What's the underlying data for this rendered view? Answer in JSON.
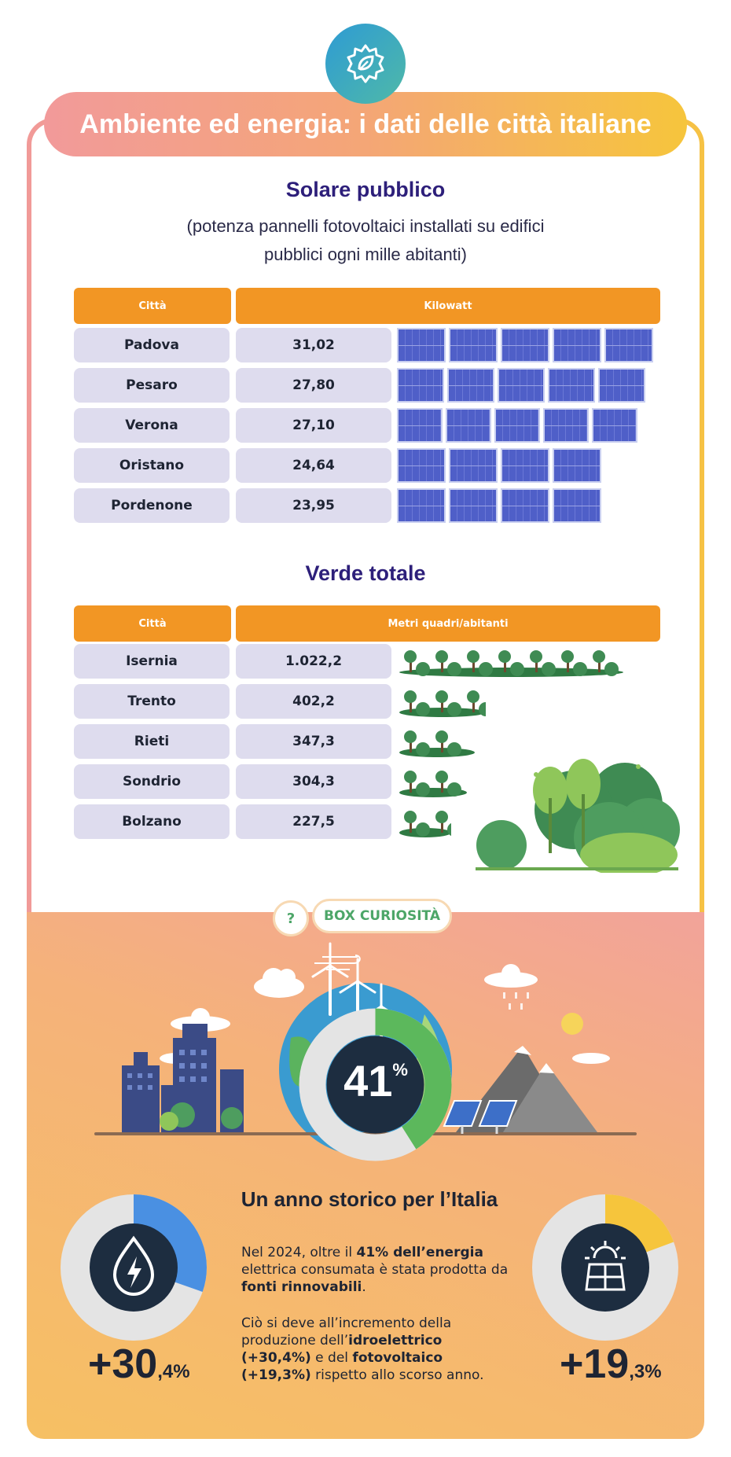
{
  "title": "Ambiente ed energia: i dati delle città italiane",
  "solar": {
    "title": "Solare pubblico",
    "subtitle_line1": "(potenza pannelli fotovoltaici installati su edifici",
    "subtitle_line2": "pubblici ogni mille abitanti)",
    "col_city": "Città",
    "col_value": "Kilowatt",
    "rows": [
      {
        "city": "Padova",
        "value": "31,02",
        "panels": 5
      },
      {
        "city": "Pesaro",
        "value": "27,80",
        "panels": 5
      },
      {
        "city": "Verona",
        "value": "27,10",
        "panels": 5
      },
      {
        "city": "Oristano",
        "value": "24,64",
        "panels": 4
      },
      {
        "city": "Pordenone",
        "value": "23,95",
        "panels": 4
      }
    ]
  },
  "green": {
    "title": "Verde totale",
    "col_city": "Città",
    "col_value": "Metri quadri/abitanti",
    "rows": [
      {
        "city": "Isernia",
        "value": "1.022,2"
      },
      {
        "city": "Trento",
        "value": "402,2"
      },
      {
        "city": "Rieti",
        "value": "347,3"
      },
      {
        "city": "Sondrio",
        "value": "304,3"
      },
      {
        "city": "Bolzano",
        "value": "227,5"
      }
    ]
  },
  "curiosity": {
    "question_mark": "?",
    "tag": "BOX CURIOSITÀ",
    "donut_value": "41",
    "donut_unit": "%",
    "donut_fraction": 0.41,
    "heading": "Un anno storico per l’Italia",
    "p1_a": "Nel 2024, oltre il ",
    "p1_b": "41% dell’energia",
    "p1_c": " elettrica consumata è stata prodotta da ",
    "p1_d": "fonti rinnovabili",
    "p1_e": ".",
    "p2_a": "Ciò si deve all’incremento della produzione dell’",
    "p2_b": "idroelettrico",
    "p2_c": " (+30,4%)",
    "p2_d": " e del ",
    "p2_e": "fotovoltaico",
    "p2_f": " (+19,3%)",
    "p2_g": " rispetto allo scorso anno.",
    "hydro_int": "+30",
    "hydro_dec": ",4%",
    "hydro_fraction": 0.304,
    "solar_int": "+19",
    "solar_dec": ",3%",
    "solar_fraction": 0.193
  },
  "colors": {
    "orange": "#f29624",
    "purple": "#2d1f7a",
    "green": "#4da668",
    "blue": "#4a90e2",
    "yellow": "#f6c53c",
    "navy": "#1c2b3a"
  }
}
